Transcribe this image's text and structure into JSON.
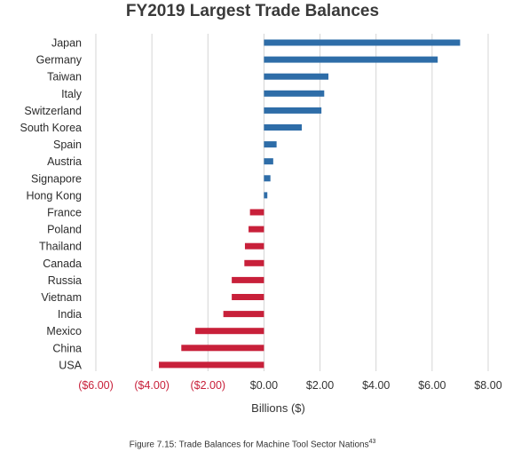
{
  "title": "FY2019 Largest Trade Balances",
  "caption": "Figure 7.15: Trade Balances for Machine Tool Sector Nations",
  "caption_superscript": "43",
  "colors": {
    "positive": "#2e6da8",
    "negative": "#c8203a",
    "grid": "#d4d4d4",
    "positive_tick": "#333333",
    "negative_tick": "#c8203a"
  },
  "chart_data": {
    "type": "bar",
    "orientation": "horizontal",
    "title": "FY2019 Largest Trade Balances",
    "xlabel": "Billions ($)",
    "ylabel": "",
    "xlim": [
      -6,
      8
    ],
    "grid": true,
    "categories": [
      "Japan",
      "Germany",
      "Taiwan",
      "Italy",
      "Switzerland",
      "South Korea",
      "Spain",
      "Austria",
      "Signapore",
      "Hong Kong",
      "France",
      "Poland",
      "Thailand",
      "Canada",
      "Russia",
      "Vietnam",
      "India",
      "Mexico",
      "China",
      "USA"
    ],
    "values": [
      7.0,
      6.2,
      2.3,
      2.15,
      2.05,
      1.35,
      0.45,
      0.33,
      0.23,
      0.12,
      -0.5,
      -0.55,
      -0.68,
      -0.7,
      -1.15,
      -1.15,
      -1.45,
      -2.45,
      -2.95,
      -3.75
    ],
    "ticks": [
      -6,
      -4,
      -2,
      0,
      2,
      4,
      6,
      8
    ],
    "tick_labels": [
      "($6.00)",
      "($4.00)",
      "($2.00)",
      "$0.00",
      "$2.00",
      "$4.00",
      "$6.00",
      "$8.00"
    ]
  }
}
